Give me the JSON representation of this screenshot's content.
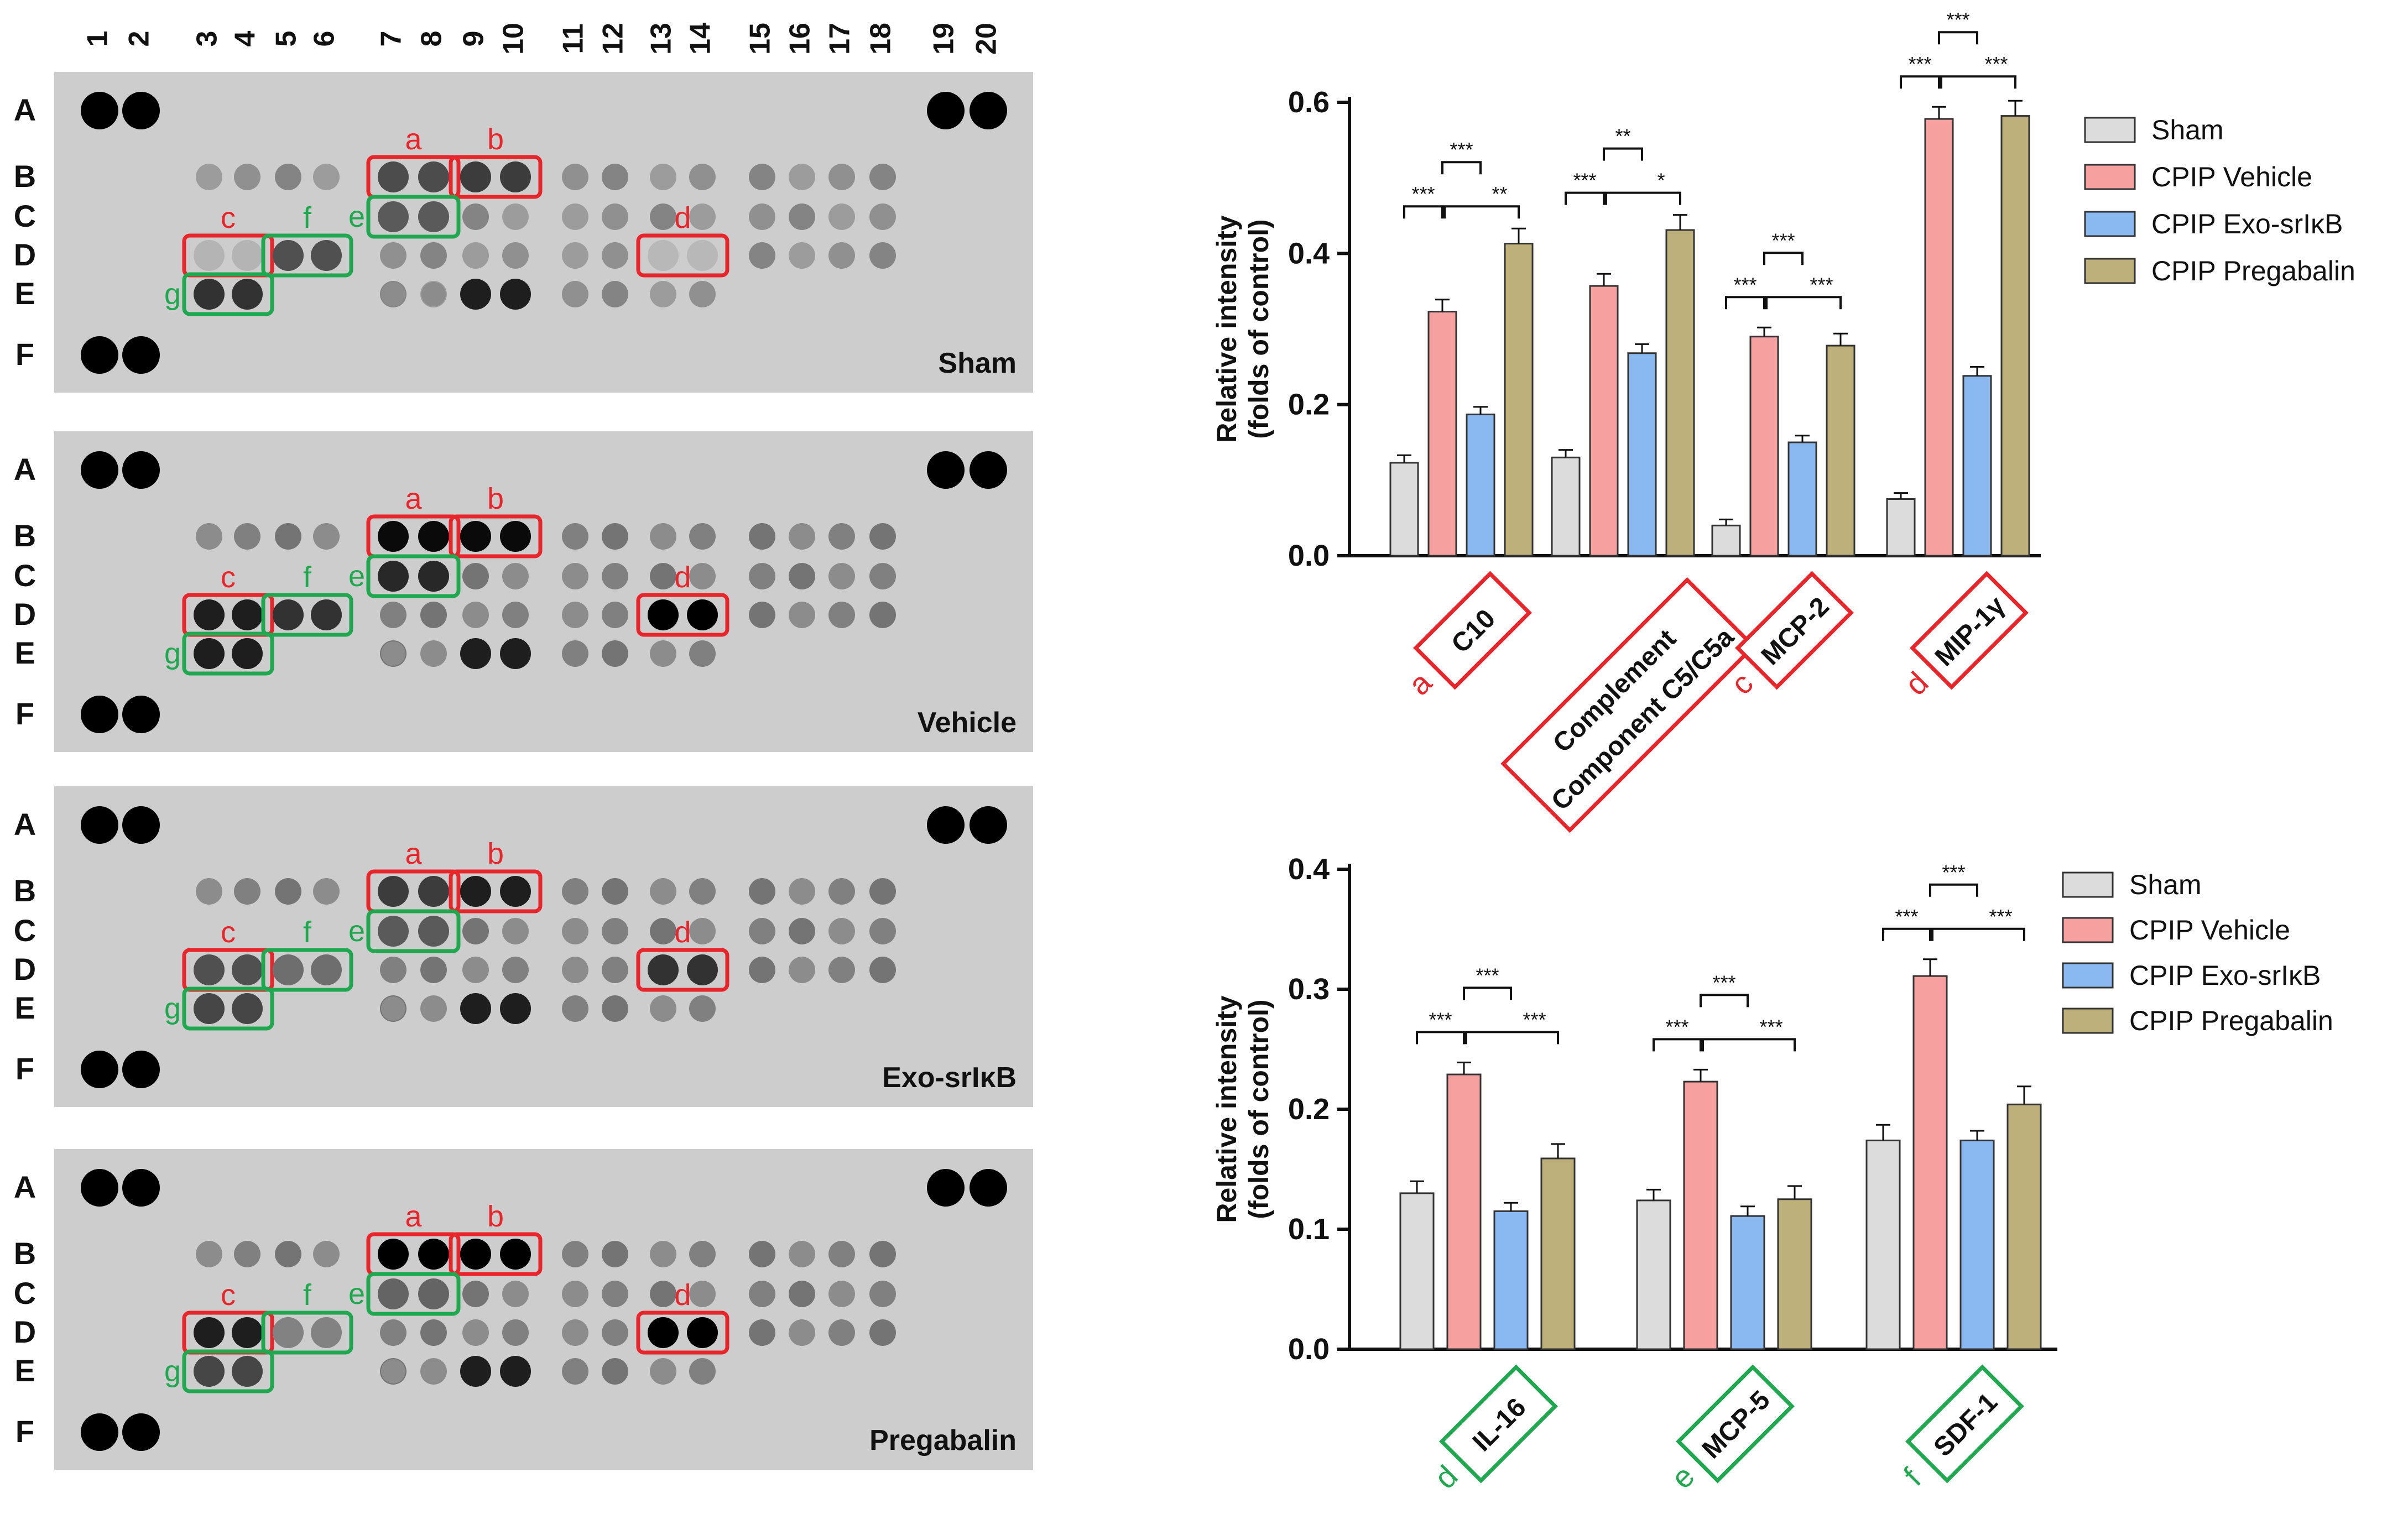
{
  "figure": {
    "column_numbers": [
      "1",
      "2",
      "3",
      "4",
      "5",
      "6",
      "7",
      "8",
      "9",
      "10",
      "11",
      "12",
      "13",
      "14",
      "15",
      "16",
      "17",
      "18",
      "19",
      "20"
    ],
    "row_letters": [
      "A",
      "B",
      "C",
      "D",
      "E",
      "F"
    ],
    "panels": [
      {
        "label": "Sham",
        "boxes": [
          {
            "letter": "a",
            "color": "#e8252b"
          },
          {
            "letter": "b",
            "color": "#e8252b"
          },
          {
            "letter": "c",
            "color": "#e8252b"
          },
          {
            "letter": "f",
            "color": "#1fa84f"
          },
          {
            "letter": "e",
            "color": "#1fa84f"
          },
          {
            "letter": "d",
            "color": "#e8252b"
          },
          {
            "letter": "g",
            "color": "#1fa84f"
          }
        ],
        "spot_intensity": {
          "a": 0.62,
          "b": 0.7,
          "c": 0.1,
          "d": 0.08,
          "e": 0.55,
          "f": 0.6,
          "g": 0.75
        }
      },
      {
        "label": "Vehicle",
        "boxes": [
          {
            "letter": "a",
            "color": "#e8252b"
          },
          {
            "letter": "b",
            "color": "#e8252b"
          },
          {
            "letter": "c",
            "color": "#e8252b"
          },
          {
            "letter": "f",
            "color": "#1fa84f"
          },
          {
            "letter": "e",
            "color": "#1fa84f"
          },
          {
            "letter": "d",
            "color": "#e8252b"
          },
          {
            "letter": "g",
            "color": "#1fa84f"
          }
        ],
        "spot_intensity": {
          "a": 0.95,
          "b": 0.95,
          "c": 0.85,
          "d": 1.0,
          "e": 0.8,
          "f": 0.75,
          "g": 0.85
        }
      },
      {
        "label": "Exo-srIκB",
        "boxes": [
          {
            "letter": "a",
            "color": "#e8252b"
          },
          {
            "letter": "b",
            "color": "#e8252b"
          },
          {
            "letter": "c",
            "color": "#e8252b"
          },
          {
            "letter": "f",
            "color": "#1fa84f"
          },
          {
            "letter": "e",
            "color": "#1fa84f"
          },
          {
            "letter": "d",
            "color": "#e8252b"
          },
          {
            "letter": "g",
            "color": "#1fa84f"
          }
        ],
        "spot_intensity": {
          "a": 0.7,
          "b": 0.85,
          "c": 0.6,
          "d": 0.75,
          "e": 0.55,
          "f": 0.45,
          "g": 0.65
        }
      },
      {
        "label": "Pregabalin",
        "boxes": [
          {
            "letter": "a",
            "color": "#e8252b"
          },
          {
            "letter": "b",
            "color": "#e8252b"
          },
          {
            "letter": "c",
            "color": "#e8252b"
          },
          {
            "letter": "f",
            "color": "#1fa84f"
          },
          {
            "letter": "e",
            "color": "#1fa84f"
          },
          {
            "letter": "d",
            "color": "#e8252b"
          },
          {
            "letter": "g",
            "color": "#1fa84f"
          }
        ],
        "spot_intensity": {
          "a": 1.0,
          "b": 1.0,
          "c": 0.85,
          "d": 1.0,
          "e": 0.5,
          "f": 0.35,
          "g": 0.65
        }
      }
    ]
  },
  "chart_data": [
    {
      "type": "bar",
      "ylabel": "Relative intensity\n(folds of control)",
      "ylabel_lines": [
        "Relative intensity",
        "(folds of control)"
      ],
      "ylim": [
        0,
        0.6
      ],
      "yticks": [
        "0.0",
        "0.2",
        "0.4",
        "0.6"
      ],
      "categories": [
        {
          "tag": "a",
          "tag_color": "#e8252b",
          "lines": [
            "C10"
          ]
        },
        {
          "tag": "",
          "tag_color": "#e8252b",
          "lines": [
            "Complement",
            "Component C5/C5a"
          ]
        },
        {
          "tag": "c",
          "tag_color": "#e8252b",
          "lines": [
            "MCP-2"
          ]
        },
        {
          "tag": "d",
          "tag_color": "#e8252b",
          "lines": [
            "MIP-1γ"
          ]
        }
      ],
      "series": [
        {
          "name": "Sham",
          "color": "#dcdcdc",
          "values": [
            0.123,
            0.13,
            0.04,
            0.075
          ],
          "errors": [
            0.01,
            0.01,
            0.008,
            0.008
          ]
        },
        {
          "name": "CPIP Vehicle",
          "color": "#f7a0a0",
          "values": [
            0.323,
            0.357,
            0.29,
            0.578
          ],
          "errors": [
            0.016,
            0.016,
            0.012,
            0.016
          ]
        },
        {
          "name": "CPIP Exo-srIκB",
          "color": "#8ab9f1",
          "values": [
            0.187,
            0.268,
            0.15,
            0.238
          ],
          "errors": [
            0.01,
            0.012,
            0.009,
            0.012
          ]
        },
        {
          "name": "CPIP Pregabalin",
          "color": "#beb07a",
          "values": [
            0.413,
            0.431,
            0.278,
            0.582
          ],
          "errors": [
            0.02,
            0.02,
            0.016,
            0.02
          ]
        }
      ],
      "significance": [
        [
          {
            "text": "***"
          },
          {
            "text": "***"
          },
          {
            "text": "**"
          }
        ],
        [
          {
            "text": "***"
          },
          {
            "text": "**"
          },
          {
            "text": "*"
          }
        ],
        [
          {
            "text": "***"
          },
          {
            "text": "***"
          },
          {
            "text": "***"
          }
        ],
        [
          {
            "text": "***"
          },
          {
            "text": "***"
          },
          {
            "text": "***"
          }
        ]
      ]
    },
    {
      "type": "bar",
      "ylabel": "Relative intensity\n(folds of control)",
      "ylabel_lines": [
        "Relative intensity",
        "(folds of control)"
      ],
      "ylim": [
        0,
        0.4
      ],
      "yticks": [
        "0.0",
        "0.1",
        "0.2",
        "0.3",
        "0.4"
      ],
      "categories": [
        {
          "tag": "d",
          "tag_color": "#1fa84f",
          "lines": [
            "IL-16"
          ]
        },
        {
          "tag": "e",
          "tag_color": "#1fa84f",
          "lines": [
            "MCP-5"
          ]
        },
        {
          "tag": "f",
          "tag_color": "#1fa84f",
          "lines": [
            "SDF-1"
          ]
        }
      ],
      "series": [
        {
          "name": "Sham",
          "color": "#dcdcdc",
          "values": [
            0.13,
            0.124,
            0.174
          ],
          "errors": [
            0.01,
            0.009,
            0.013
          ]
        },
        {
          "name": "CPIP Vehicle",
          "color": "#f7a0a0",
          "values": [
            0.229,
            0.223,
            0.311
          ],
          "errors": [
            0.01,
            0.01,
            0.014
          ]
        },
        {
          "name": "CPIP Exo-srIκB",
          "color": "#8ab9f1",
          "values": [
            0.115,
            0.111,
            0.174
          ],
          "errors": [
            0.007,
            0.008,
            0.008
          ]
        },
        {
          "name": "CPIP Pregabalin",
          "color": "#beb07a",
          "values": [
            0.159,
            0.125,
            0.204
          ],
          "errors": [
            0.012,
            0.011,
            0.015
          ]
        }
      ],
      "significance": [
        [
          {
            "text": "***"
          },
          {
            "text": "***"
          },
          {
            "text": "***"
          }
        ],
        [
          {
            "text": "***"
          },
          {
            "text": "***"
          },
          {
            "text": "***"
          }
        ],
        [
          {
            "text": "***"
          },
          {
            "text": "***"
          },
          {
            "text": "***"
          }
        ]
      ]
    }
  ]
}
